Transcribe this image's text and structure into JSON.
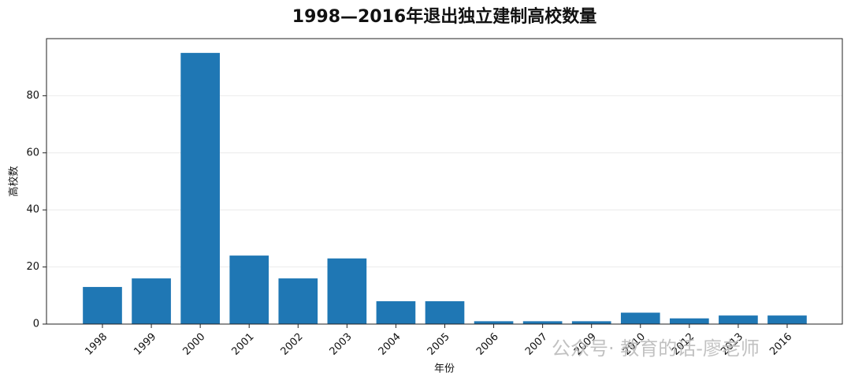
{
  "chart_data": {
    "type": "bar",
    "title": "1998—2016年退出独立建制高校数量",
    "x_label": "年份",
    "y_label": "高校数",
    "categories": [
      "1998",
      "1999",
      "2000",
      "2001",
      "2002",
      "2003",
      "2004",
      "2005",
      "2006",
      "2007",
      "2009",
      "2010",
      "2012",
      "2013",
      "2016"
    ],
    "values": [
      13,
      16,
      95,
      24,
      16,
      23,
      8,
      8,
      1,
      1,
      1,
      4,
      2,
      3,
      3
    ],
    "color": "#1f77b4",
    "ylim": [
      0,
      100
    ],
    "yticks": [
      0,
      20,
      40,
      60,
      80
    ],
    "grid": true,
    "watermark": "公众号· 教育的话-廖老师"
  }
}
